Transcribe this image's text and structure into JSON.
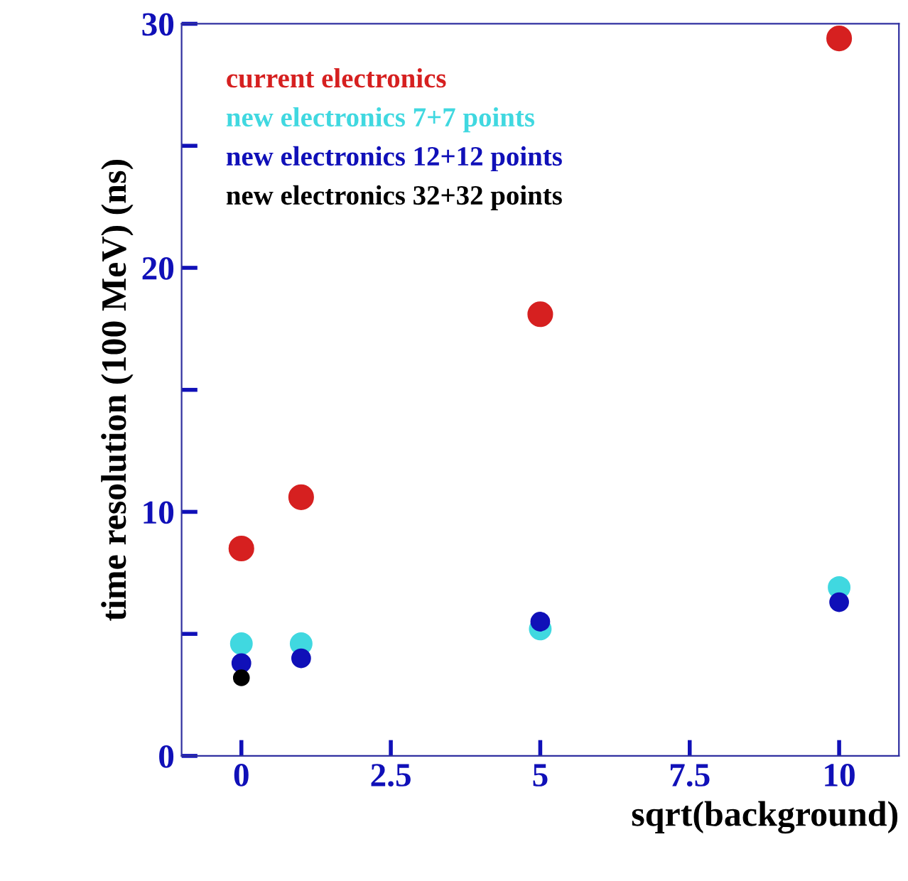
{
  "chart_data": {
    "type": "scatter",
    "xlabel": "sqrt(background)",
    "ylabel": "time resolution (100 MeV) (ns)",
    "x": [
      0,
      1,
      5,
      10
    ],
    "series": [
      {
        "name": "current electronics",
        "color": "#d62020",
        "values": [
          8.5,
          10.6,
          18.1,
          29.4
        ]
      },
      {
        "name": "new electronics 7+7 points",
        "color": "#40d8e0",
        "values": [
          4.6,
          4.6,
          5.2,
          6.9
        ]
      },
      {
        "name": "new electronics 12+12 points",
        "color": "#1010b8",
        "values": [
          3.8,
          4.0,
          5.5,
          6.3
        ]
      },
      {
        "name": "new electronics 32+32 points",
        "color": "#000000",
        "values": [
          3.2,
          null,
          null,
          null
        ]
      }
    ],
    "xlim": [
      -1,
      11
    ],
    "ylim": [
      0,
      30
    ],
    "xticks": [
      0,
      2.5,
      5,
      7.5,
      10
    ],
    "yticks": [
      0,
      {
        "value": 5,
        "label": null
      },
      10,
      {
        "value": 15,
        "label": null
      },
      20,
      {
        "value": 25,
        "label": null
      },
      30
    ],
    "marker": "circle",
    "legend": "top left",
    "grid": false
  }
}
